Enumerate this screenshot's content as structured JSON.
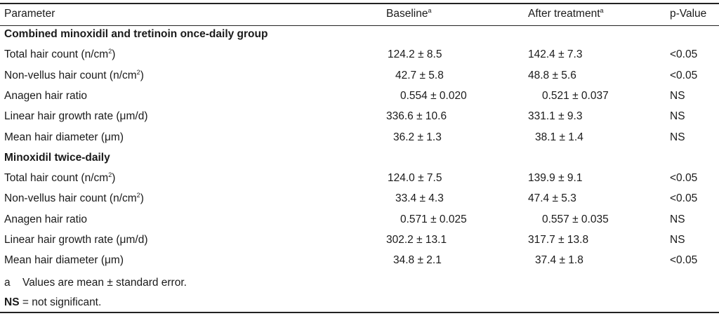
{
  "header": {
    "parameter": "Parameter",
    "baseline": "Baseline",
    "after": "After treatment",
    "pvalue": "p-Value",
    "sup": "a"
  },
  "groups": [
    {
      "title": "Combined minoxidil and tretinoin once-daily group",
      "rows": [
        {
          "param": "Total hair count (n/cm",
          "param_sup": "2",
          "param_tail": ")",
          "baseline": "124.2 ± 8.5",
          "after": "142.4 ± 7.3",
          "p": "<0.05"
        },
        {
          "param": "Non-vellus hair count (n/cm",
          "param_sup": "2",
          "param_tail": ")",
          "baseline": "42.7 ± 5.8",
          "after": "48.8 ± 5.6",
          "p": "<0.05"
        },
        {
          "param": "Anagen hair ratio",
          "param_sup": "",
          "param_tail": "",
          "baseline": "0.554 ± 0.020",
          "after": "0.521 ± 0.037",
          "p": "NS"
        },
        {
          "param": "Linear hair growth rate (μm/d)",
          "param_sup": "",
          "param_tail": "",
          "baseline": "336.6 ± 10.6",
          "after": "331.1 ± 9.3",
          "p": "NS"
        },
        {
          "param": "Mean hair diameter (μm)",
          "param_sup": "",
          "param_tail": "",
          "baseline": "36.2 ± 1.3",
          "after": "38.1 ± 1.4",
          "p": "NS"
        }
      ]
    },
    {
      "title": "Minoxidil twice-daily",
      "rows": [
        {
          "param": "Total hair count (n/cm",
          "param_sup": "2",
          "param_tail": ")",
          "baseline": "124.0 ± 7.5",
          "after": "139.9 ± 9.1",
          "p": "<0.05"
        },
        {
          "param": "Non-vellus hair count (n/cm",
          "param_sup": "2",
          "param_tail": ")",
          "baseline": "33.4 ± 4.3",
          "after": "47.4 ± 5.3",
          "p": "<0.05"
        },
        {
          "param": "Anagen hair ratio",
          "param_sup": "",
          "param_tail": "",
          "baseline": "0.571 ± 0.025",
          "after": "0.557 ± 0.035",
          "p": "NS"
        },
        {
          "param": "Linear hair growth rate (μm/d)",
          "param_sup": "",
          "param_tail": "",
          "baseline": "302.2 ± 13.1",
          "after": "317.7 ± 13.8",
          "p": "NS"
        },
        {
          "param": "Mean hair diameter (μm)",
          "param_sup": "",
          "param_tail": "",
          "baseline": "34.8 ± 2.1",
          "after": "37.4 ± 1.8",
          "p": "<0.05"
        }
      ]
    }
  ],
  "footnotes": {
    "a_mark": "a",
    "a_text": "Values are mean ± standard error.",
    "ns_bold": "NS",
    "ns_text": " = not significant."
  }
}
